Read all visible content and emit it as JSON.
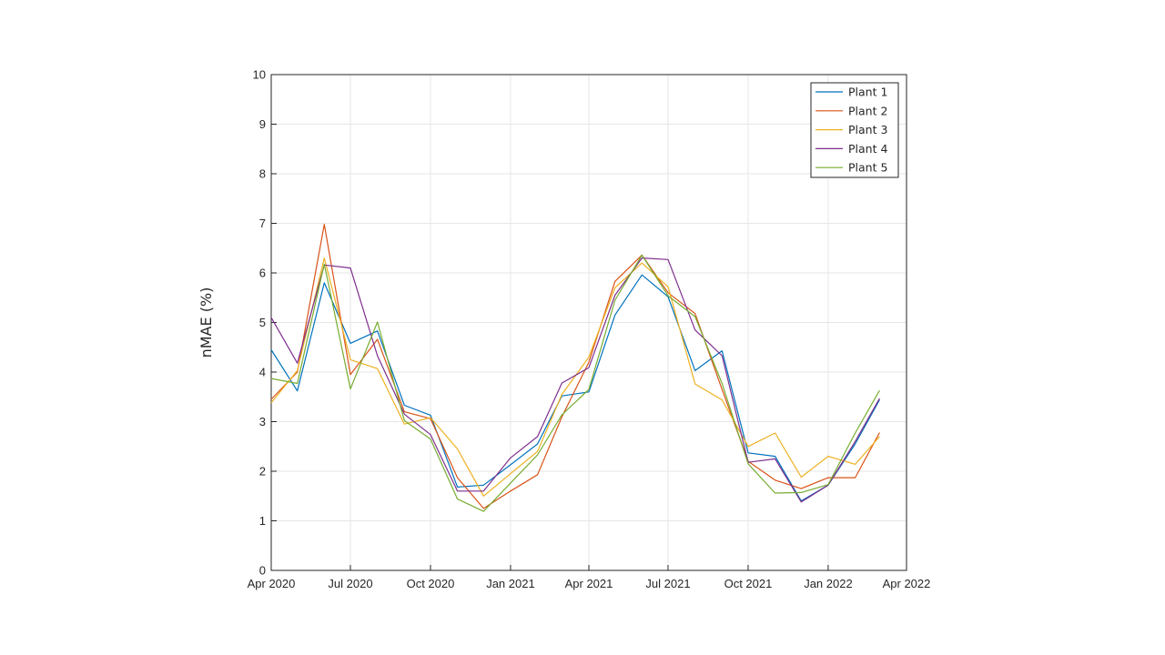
{
  "chart_data": {
    "type": "line",
    "title": "",
    "xlabel": "",
    "ylabel": "nMAE (%)",
    "x_ticks": [
      "Apr 2020",
      "Jul 2020",
      "Oct 2020",
      "Jan 2021",
      "Apr 2021",
      "Jul 2021",
      "Oct 2021",
      "Jan 2022",
      "Apr 2022"
    ],
    "xlim": [
      "Apr 2020",
      "Apr 2022"
    ],
    "y_ticks": [
      0,
      1,
      2,
      3,
      4,
      5,
      6,
      7,
      8,
      9,
      10
    ],
    "ylim": [
      0,
      10
    ],
    "grid": true,
    "legend_position": "top-right",
    "x": [
      "2020-04-01",
      "2020-05-01",
      "2020-06-01",
      "2020-07-01",
      "2020-08-01",
      "2020-09-01",
      "2020-10-01",
      "2020-11-01",
      "2020-12-01",
      "2021-01-01",
      "2021-02-01",
      "2021-03-01",
      "2021-04-01",
      "2021-05-01",
      "2021-06-01",
      "2021-07-01",
      "2021-08-01",
      "2021-09-01",
      "2021-10-01",
      "2021-11-01",
      "2021-12-01",
      "2022-01-01",
      "2022-02-01",
      "2022-03-01"
    ],
    "series": [
      {
        "name": "Plant 1",
        "color": "#0072BD",
        "values": [
          4.45,
          3.62,
          5.8,
          4.58,
          4.83,
          3.33,
          3.13,
          1.68,
          1.72,
          2.13,
          2.55,
          3.52,
          3.6,
          5.15,
          5.96,
          5.52,
          4.03,
          4.43,
          2.37,
          2.3,
          1.4,
          1.72,
          2.55,
          3.44
        ]
      },
      {
        "name": "Plant 2",
        "color": "#D95319",
        "values": [
          3.45,
          4.0,
          6.98,
          3.95,
          4.66,
          3.2,
          3.06,
          1.87,
          1.25,
          1.6,
          1.93,
          3.1,
          4.2,
          5.83,
          6.36,
          5.6,
          5.18,
          3.65,
          2.2,
          1.82,
          1.65,
          1.87,
          1.87,
          2.78
        ]
      },
      {
        "name": "Plant 3",
        "color": "#EDB120",
        "values": [
          3.38,
          4.03,
          6.3,
          4.25,
          4.07,
          2.95,
          3.08,
          2.45,
          1.5,
          1.95,
          2.4,
          3.55,
          4.3,
          5.7,
          6.2,
          5.72,
          3.76,
          3.44,
          2.5,
          2.77,
          1.88,
          2.3,
          2.14,
          2.7
        ]
      },
      {
        "name": "Plant 4",
        "color": "#7E2F8E",
        "values": [
          5.1,
          4.18,
          6.16,
          6.1,
          4.33,
          3.15,
          2.74,
          1.6,
          1.6,
          2.27,
          2.7,
          3.78,
          4.09,
          5.55,
          6.3,
          6.27,
          4.85,
          4.33,
          2.18,
          2.25,
          1.38,
          1.72,
          2.6,
          3.47
        ]
      },
      {
        "name": "Plant 5",
        "color": "#77AC30",
        "values": [
          3.87,
          3.77,
          6.18,
          3.66,
          5.01,
          3.02,
          2.65,
          1.44,
          1.19,
          1.76,
          2.33,
          3.14,
          3.65,
          5.45,
          6.36,
          5.54,
          5.12,
          3.77,
          2.15,
          1.56,
          1.57,
          1.73,
          2.77,
          3.63
        ]
      }
    ]
  }
}
